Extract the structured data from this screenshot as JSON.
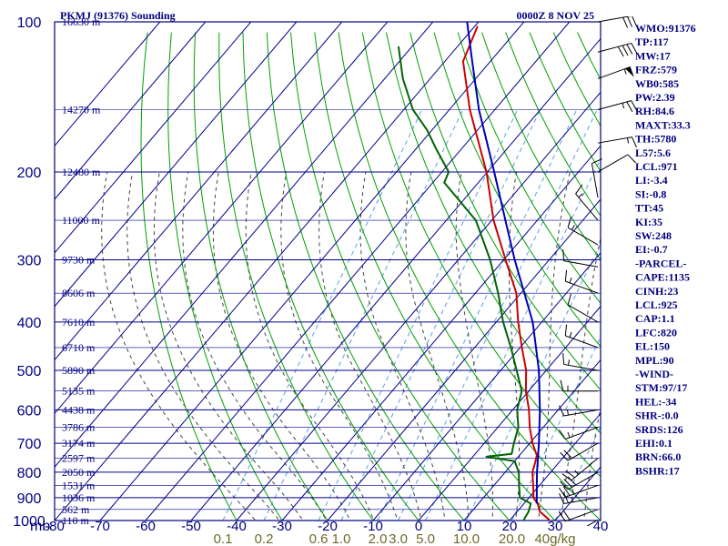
{
  "chart_data": {
    "type": "line",
    "subtype": "skew-t-log-p sounding",
    "title": "PKMJ (91376) Sounding",
    "date_label": "0000Z  8 NOV 25",
    "x_axis_unit_label": "mb",
    "temperature_ticks": [
      "-80",
      "-70",
      "-60",
      "-50",
      "-40",
      "-30",
      "-20",
      "-10",
      "0",
      "10",
      "20",
      "30",
      "40"
    ],
    "temperature_tick_values": [
      -80,
      -70,
      -60,
      -50,
      -40,
      -30,
      -20,
      -10,
      0,
      10,
      20,
      30,
      40
    ],
    "pressure_ticks": [
      100,
      200,
      300,
      400,
      500,
      600,
      700,
      800,
      900,
      1000
    ],
    "mixing_ratio_ticks": [
      {
        "label": "0.1",
        "t1000": -43
      },
      {
        "label": "0.2",
        "t1000": -34
      },
      {
        "label": "0.6",
        "t1000": -22
      },
      {
        "label": "1.0",
        "t1000": -17
      },
      {
        "label": "2.0",
        "t1000": -9
      },
      {
        "label": "3.0",
        "t1000": -4.5
      },
      {
        "label": "5.0",
        "t1000": 1.5
      },
      {
        "label": "10.0",
        "t1000": 10.5
      },
      {
        "label": "20.0",
        "t1000": 20.5
      },
      {
        "label": "40g/kg",
        "t1000": 30
      }
    ],
    "height_labels": [
      {
        "p": 100,
        "label": "16630 m"
      },
      {
        "p": 150,
        "label": "14270 m"
      },
      {
        "p": 200,
        "label": "12480 m"
      },
      {
        "p": 250,
        "label": "11000 m"
      },
      {
        "p": 300,
        "label": "9730 m"
      },
      {
        "p": 350,
        "label": "8606 m"
      },
      {
        "p": 400,
        "label": "7610 m"
      },
      {
        "p": 450,
        "label": "6710 m"
      },
      {
        "p": 500,
        "label": "5890 m"
      },
      {
        "p": 550,
        "label": "5135 m"
      },
      {
        "p": 600,
        "label": "4438 m"
      },
      {
        "p": 650,
        "label": "3786 m"
      },
      {
        "p": 700,
        "label": "3174 m"
      },
      {
        "p": 750,
        "label": "2597 m"
      },
      {
        "p": 800,
        "label": "2050 m"
      },
      {
        "p": 850,
        "label": "1531 m"
      },
      {
        "p": 900,
        "label": "1036 m"
      },
      {
        "p": 950,
        "label": "562 m"
      },
      {
        "p": 1000,
        "label": "110 m"
      }
    ],
    "series": [
      {
        "name": "temperature",
        "color": "#cc0000",
        "points": [
          {
            "p": 997,
            "t": 28.6
          },
          {
            "p": 960,
            "t": 25.0
          },
          {
            "p": 925,
            "t": 23.0
          },
          {
            "p": 900,
            "t": 21.0
          },
          {
            "p": 850,
            "t": 18.6
          },
          {
            "p": 800,
            "t": 16.0
          },
          {
            "p": 760,
            "t": 14.6
          },
          {
            "p": 740,
            "t": 13.8
          },
          {
            "p": 700,
            "t": 10.6
          },
          {
            "p": 650,
            "t": 7.0
          },
          {
            "p": 600,
            "t": 3.6
          },
          {
            "p": 550,
            "t": -0.6
          },
          {
            "p": 500,
            "t": -4.4
          },
          {
            "p": 450,
            "t": -9.6
          },
          {
            "p": 400,
            "t": -15.2
          },
          {
            "p": 350,
            "t": -21.0
          },
          {
            "p": 300,
            "t": -29.6
          },
          {
            "p": 250,
            "t": -39.6
          },
          {
            "p": 200,
            "t": -50.2
          },
          {
            "p": 150,
            "t": -65.5
          },
          {
            "p": 120,
            "t": -76.0
          },
          {
            "p": 102,
            "t": -79.4
          }
        ]
      },
      {
        "name": "dewpoint",
        "color": "#006400",
        "points": [
          {
            "p": 997,
            "t": 23.0
          },
          {
            "p": 960,
            "t": 22.5
          },
          {
            "p": 925,
            "t": 21.5
          },
          {
            "p": 900,
            "t": 18.0
          },
          {
            "p": 850,
            "t": 15.5
          },
          {
            "p": 800,
            "t": 13.0
          },
          {
            "p": 760,
            "t": 10.0
          },
          {
            "p": 745,
            "t": 3.0
          },
          {
            "p": 735,
            "t": 8.0
          },
          {
            "p": 700,
            "t": 6.5
          },
          {
            "p": 650,
            "t": 4.5
          },
          {
            "p": 600,
            "t": 1.0
          },
          {
            "p": 550,
            "t": -1.5
          },
          {
            "p": 500,
            "t": -6.5
          },
          {
            "p": 450,
            "t": -12.0
          },
          {
            "p": 400,
            "t": -18.5
          },
          {
            "p": 350,
            "t": -25.0
          },
          {
            "p": 300,
            "t": -33.0
          },
          {
            "p": 250,
            "t": -43.5
          },
          {
            "p": 210,
            "t": -57.5
          },
          {
            "p": 200,
            "t": -58.5
          },
          {
            "p": 180,
            "t": -65.5
          },
          {
            "p": 165,
            "t": -71.0
          },
          {
            "p": 150,
            "t": -78.0
          },
          {
            "p": 130,
            "t": -86.0
          },
          {
            "p": 112,
            "t": -93.0
          }
        ]
      },
      {
        "name": "parcel",
        "color": "#0000b4",
        "points": [
          {
            "p": 925,
            "t": 22.8
          },
          {
            "p": 850,
            "t": 19.4
          },
          {
            "p": 800,
            "t": 17.0
          },
          {
            "p": 700,
            "t": 12.0
          },
          {
            "p": 600,
            "t": 6.0
          },
          {
            "p": 500,
            "t": -1.6
          },
          {
            "p": 400,
            "t": -12.0
          },
          {
            "p": 300,
            "t": -27.6
          },
          {
            "p": 250,
            "t": -37.0
          },
          {
            "p": 200,
            "t": -48.5
          },
          {
            "p": 150,
            "t": -63.5
          },
          {
            "p": 120,
            "t": -74.0
          },
          {
            "p": 100,
            "t": -82.5
          }
        ]
      }
    ],
    "wind_barbs": [
      {
        "p": 100,
        "dir": 80,
        "spd": 30
      },
      {
        "p": 115,
        "dir": 75,
        "spd": 40
      },
      {
        "p": 130,
        "dir": 70,
        "spd": 55
      },
      {
        "p": 150,
        "dir": 75,
        "spd": 25
      },
      {
        "p": 175,
        "dir": 80,
        "spd": 15
      },
      {
        "p": 200,
        "dir": 60,
        "spd": 10
      },
      {
        "p": 225,
        "dir": 350,
        "spd": 10
      },
      {
        "p": 250,
        "dir": 320,
        "spd": 15
      },
      {
        "p": 280,
        "dir": 300,
        "spd": 15
      },
      {
        "p": 310,
        "dir": 280,
        "spd": 10
      },
      {
        "p": 350,
        "dir": 290,
        "spd": 15
      },
      {
        "p": 400,
        "dir": 300,
        "spd": 10
      },
      {
        "p": 450,
        "dir": 290,
        "spd": 15
      },
      {
        "p": 500,
        "dir": 280,
        "spd": 15
      },
      {
        "p": 550,
        "dir": 270,
        "spd": 15
      },
      {
        "p": 600,
        "dir": 260,
        "spd": 15
      },
      {
        "p": 650,
        "dir": 250,
        "spd": 15
      },
      {
        "p": 700,
        "dir": 240,
        "spd": 20
      },
      {
        "p": 750,
        "dir": 230,
        "spd": 25
      },
      {
        "p": 800,
        "dir": 240,
        "spd": 30
      },
      {
        "p": 850,
        "dir": 250,
        "spd": 25
      },
      {
        "p": 900,
        "dir": 260,
        "spd": 25
      },
      {
        "p": 950,
        "dir": 250,
        "spd": 20
      },
      {
        "p": 997,
        "dir": 240,
        "spd": 10
      }
    ],
    "indices": [
      "WMO:91376",
      "TP:117",
      "MW:17",
      "FRZ:579",
      "WB0:585",
      "PW:2.39",
      "RH:84.6",
      "MAXT:33.3",
      "TH:5780",
      "L57:5.6",
      "LCL:971",
      "LI:-3.4",
      "SI:-0.8",
      "TT:45",
      "KI:35",
      "SW:248",
      "EI:-0.7",
      "-PARCEL-",
      "CAPE:1135",
      "CINH:23",
      "LCL:925",
      "CAP:1.1",
      "LFC:820",
      "EL:150",
      "MPL:90",
      "-WIND-",
      "STM:97/17",
      "HEL:-34",
      "SHR-:0.0",
      "SRDS:126",
      "EHI:0.1",
      "BRN:66.0",
      "BSHR:17"
    ],
    "xlim": [
      -80,
      40
    ],
    "ylim": [
      100,
      1000
    ]
  },
  "colors": {
    "frame": "#00007f",
    "isotherm": "#00008b",
    "dry_adiabat": "#00a000",
    "moist_adiabat": "#444444",
    "mixing_ratio": "#5aa0e6",
    "mixing_label": "#6b6b2a",
    "barb": "#000000"
  }
}
